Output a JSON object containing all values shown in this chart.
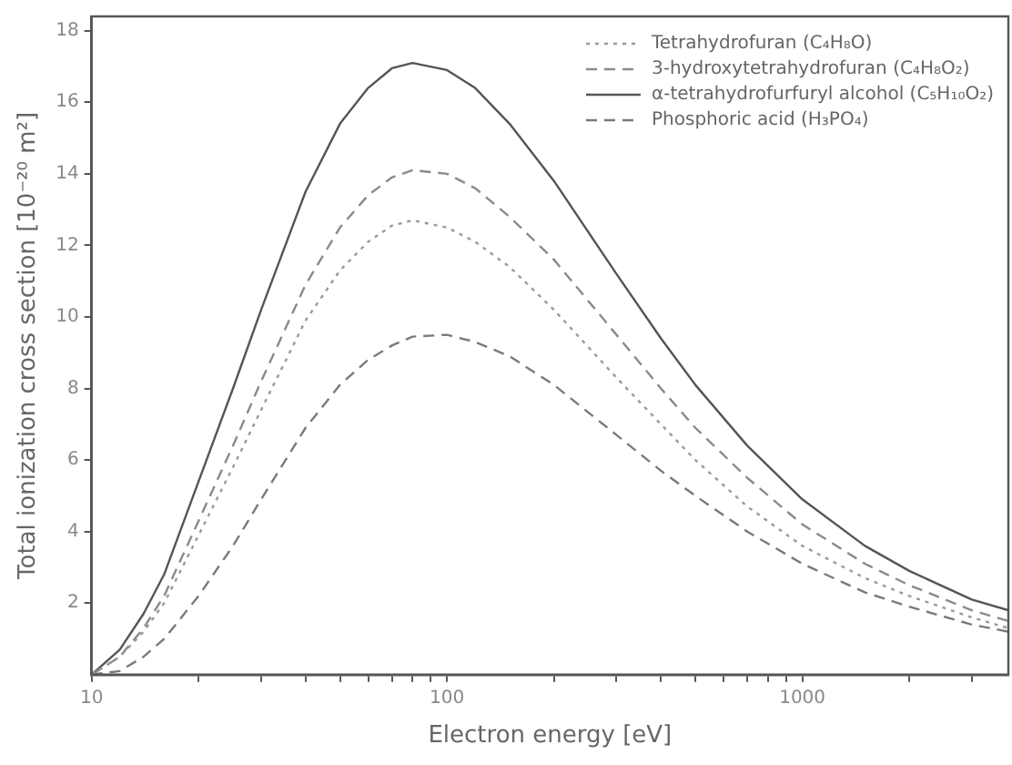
{
  "chart_data": {
    "type": "line",
    "xlabel": "Electron energy [eV]",
    "ylabel": "Total ionization cross section [10⁻²⁰ m²]",
    "x": [
      10,
      12,
      14,
      16,
      20,
      25,
      30,
      40,
      50,
      60,
      70,
      80,
      100,
      120,
      150,
      200,
      300,
      400,
      500,
      700,
      1000,
      1500,
      2000,
      3000,
      3800
    ],
    "series": [
      {
        "name": "Tetrahydrofuran (C₄H₈O)",
        "color": "#9a9a9a",
        "line_style": "dotted",
        "values": [
          0,
          0.5,
          1.2,
          2.0,
          3.9,
          5.8,
          7.4,
          9.9,
          11.3,
          12.1,
          12.55,
          12.7,
          12.5,
          12.1,
          11.4,
          10.2,
          8.3,
          7.0,
          6.0,
          4.7,
          3.6,
          2.7,
          2.2,
          1.6,
          1.3
        ]
      },
      {
        "name": "3-hydroxytetrahydrofuran (C₄H₈O₂)",
        "color": "#8a8a8a",
        "line_style": "dashed",
        "values": [
          0,
          0.5,
          1.3,
          2.2,
          4.3,
          6.4,
          8.2,
          10.9,
          12.5,
          13.4,
          13.9,
          14.1,
          14.0,
          13.6,
          12.8,
          11.6,
          9.5,
          8.0,
          6.9,
          5.5,
          4.2,
          3.1,
          2.5,
          1.8,
          1.5
        ]
      },
      {
        "name": "α-tetrahydrofurfuryl alcohol (C₅H₁₀O₂)",
        "color": "#555555",
        "line_style": "solid",
        "values": [
          0,
          0.7,
          1.7,
          2.8,
          5.4,
          8.0,
          10.2,
          13.5,
          15.4,
          16.4,
          16.95,
          17.1,
          16.9,
          16.4,
          15.4,
          13.8,
          11.2,
          9.4,
          8.1,
          6.4,
          4.9,
          3.6,
          2.9,
          2.1,
          1.8
        ]
      },
      {
        "name": "Phosphoric acid (H₃PO₄)",
        "color": "#7a7a7a",
        "line_style": "dashed",
        "values": [
          0,
          0.1,
          0.5,
          1.0,
          2.2,
          3.6,
          4.9,
          6.9,
          8.1,
          8.8,
          9.2,
          9.45,
          9.5,
          9.3,
          8.9,
          8.1,
          6.7,
          5.7,
          5.0,
          4.0,
          3.1,
          2.3,
          1.9,
          1.4,
          1.2
        ]
      }
    ],
    "log": "x",
    "xlim": [
      10,
      3800
    ],
    "xticks": [
      10,
      {
        "value": 20,
        "label": null
      },
      {
        "value": 30,
        "label": null
      },
      {
        "value": 40,
        "label": null
      },
      {
        "value": 50,
        "label": null
      },
      {
        "value": 60,
        "label": null
      },
      {
        "value": 70,
        "label": null
      },
      {
        "value": 80,
        "label": null
      },
      {
        "value": 90,
        "label": null
      },
      100,
      {
        "value": 200,
        "label": null
      },
      {
        "value": 300,
        "label": null
      },
      {
        "value": 400,
        "label": null
      },
      {
        "value": 500,
        "label": null
      },
      {
        "value": 600,
        "label": null
      },
      {
        "value": 700,
        "label": null
      },
      {
        "value": 800,
        "label": null
      },
      {
        "value": 900,
        "label": null
      },
      1000,
      {
        "value": 2000,
        "label": null
      },
      {
        "value": 3000,
        "label": null
      }
    ],
    "ylim": [
      0,
      18.4
    ],
    "yticks": [
      2,
      4,
      6,
      8,
      10,
      12,
      14,
      16,
      18
    ],
    "grid": false,
    "legend": "top right",
    "marker": "none"
  }
}
